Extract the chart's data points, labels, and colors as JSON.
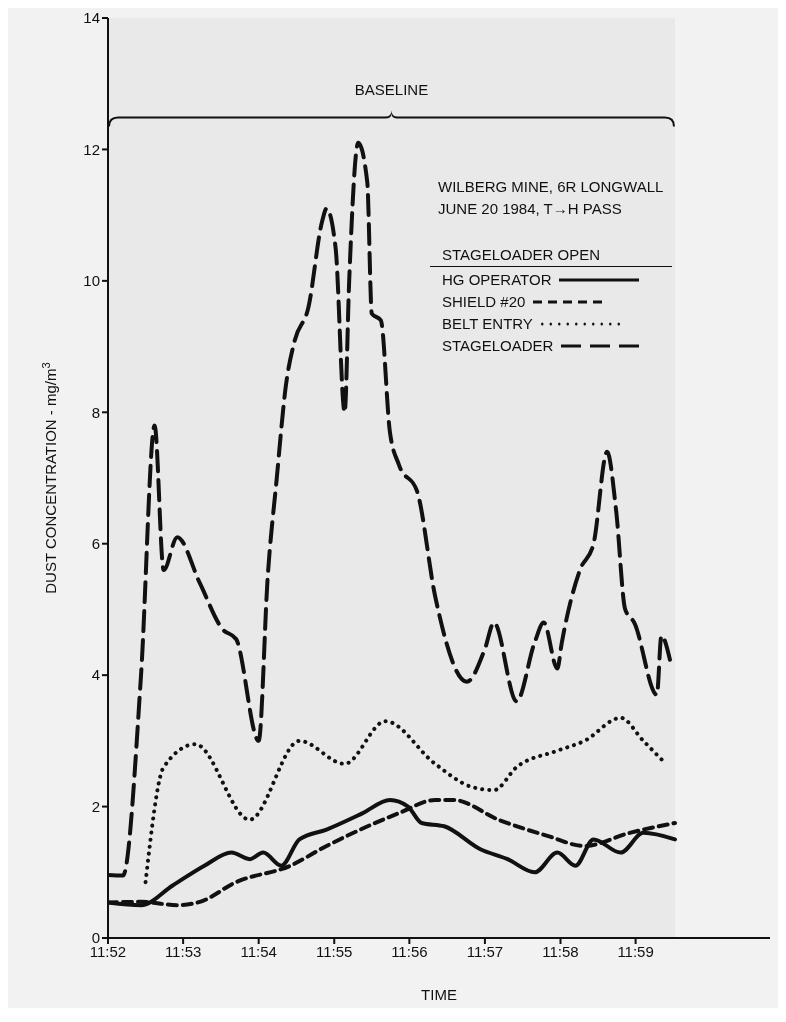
{
  "chart_data": {
    "type": "line",
    "xlabel": "TIME",
    "ylabel": "DUST CONCENTRATION - mg/m$^{3}$",
    "legend_title": "STAGELOADER OPEN",
    "legend": "top right",
    "marker": "none",
    "annotations": [
      "WILBERG MINE, 6R LONGWALL",
      "JUNE 20 1984, T→H PASS"
    ],
    "bands": [
      {
        "axis": "x",
        "from": 11.8667,
        "to": 11.992,
        "label": "BASELINE",
        "color": "#e9e9e9"
      }
    ],
    "xlim": [
      11.8667,
      12.013
    ],
    "xticks": [
      {
        "value": 11.8667,
        "label": "11:52"
      },
      {
        "value": 11.8833,
        "label": "11:53"
      },
      {
        "value": 11.9,
        "label": "11:54"
      },
      {
        "value": 11.9167,
        "label": "11:55"
      },
      {
        "value": 11.9333,
        "label": "11:56"
      },
      {
        "value": 11.95,
        "label": "11:57"
      },
      {
        "value": 11.9667,
        "label": "11:58"
      },
      {
        "value": 11.9833,
        "label": "11:59"
      }
    ],
    "ylim": [
      0,
      14
    ],
    "yticks": [
      0,
      2,
      4,
      6,
      8,
      10,
      12,
      14
    ],
    "series": [
      {
        "name": "HG OPERATOR",
        "color": "#111111",
        "line_style": "solid",
        "x": [
          11.8667,
          11.874,
          11.881,
          11.888,
          11.894,
          11.898,
          11.901,
          11.905,
          11.909,
          11.915,
          11.923,
          11.929,
          11.933,
          11.936,
          11.941,
          11.949,
          11.955,
          11.961,
          11.966,
          11.97,
          11.974,
          11.98,
          11.985,
          11.992
        ],
        "values": [
          0.54,
          0.5,
          0.8,
          1.1,
          1.3,
          1.2,
          1.3,
          1.1,
          1.5,
          1.65,
          1.9,
          2.1,
          2.0,
          1.75,
          1.7,
          1.35,
          1.2,
          1.0,
          1.3,
          1.1,
          1.5,
          1.3,
          1.6,
          1.5
        ]
      },
      {
        "name": "SHIELD #20",
        "color": "#111111",
        "line_style": "dashed",
        "x": [
          11.8667,
          11.874,
          11.882,
          11.887,
          11.895,
          11.907,
          11.915,
          11.931,
          11.939,
          11.943,
          11.953,
          11.964,
          11.972,
          11.982,
          11.992
        ],
        "values": [
          0.54,
          0.55,
          0.5,
          0.55,
          0.85,
          1.1,
          1.4,
          1.9,
          2.1,
          2.1,
          1.8,
          1.55,
          1.4,
          1.6,
          1.75
        ]
      },
      {
        "name": "BELT ENTRY",
        "color": "#111111",
        "line_style": "dotted",
        "x": [
          11.875,
          11.879,
          11.886,
          11.898,
          11.909,
          11.919,
          11.928,
          11.939,
          11.947,
          11.952,
          11.957,
          11.966,
          11.972,
          11.98,
          11.985,
          11.99
        ],
        "values": [
          0.85,
          2.6,
          2.95,
          1.8,
          3.0,
          2.65,
          3.3,
          2.65,
          2.3,
          2.25,
          2.6,
          2.85,
          3.0,
          3.35,
          3.0,
          2.65
        ]
      },
      {
        "name": "STAGELOADER",
        "color": "#111111",
        "line_style": "longdash",
        "x": [
          11.8667,
          11.87,
          11.874,
          11.877,
          11.879,
          11.882,
          11.887,
          11.892,
          11.895,
          11.9,
          11.902,
          11.904,
          11.906,
          11.908,
          11.911,
          11.914,
          11.915,
          11.917,
          11.919,
          11.92,
          11.922,
          11.924,
          11.925,
          11.927,
          11.929,
          11.931,
          11.935,
          11.939,
          11.946,
          11.95,
          11.952,
          11.957,
          11.961,
          11.963,
          11.966,
          11.967,
          11.971,
          11.974,
          11.977,
          11.979,
          11.981,
          11.983,
          11.988,
          11.989,
          11.991
        ],
        "values": [
          0.96,
          0.95,
          4.0,
          7.8,
          5.6,
          6.1,
          5.4,
          4.7,
          4.55,
          3.0,
          5.5,
          7.0,
          8.4,
          9.1,
          9.6,
          10.9,
          11.1,
          10.5,
          8.0,
          10.0,
          12.1,
          11.5,
          9.5,
          9.4,
          7.7,
          7.2,
          6.8,
          5.2,
          3.9,
          4.4,
          4.8,
          3.6,
          4.5,
          4.8,
          4.1,
          4.5,
          5.6,
          6.0,
          7.4,
          6.5,
          5.0,
          4.8,
          3.7,
          4.6,
          4.2
        ]
      }
    ]
  }
}
